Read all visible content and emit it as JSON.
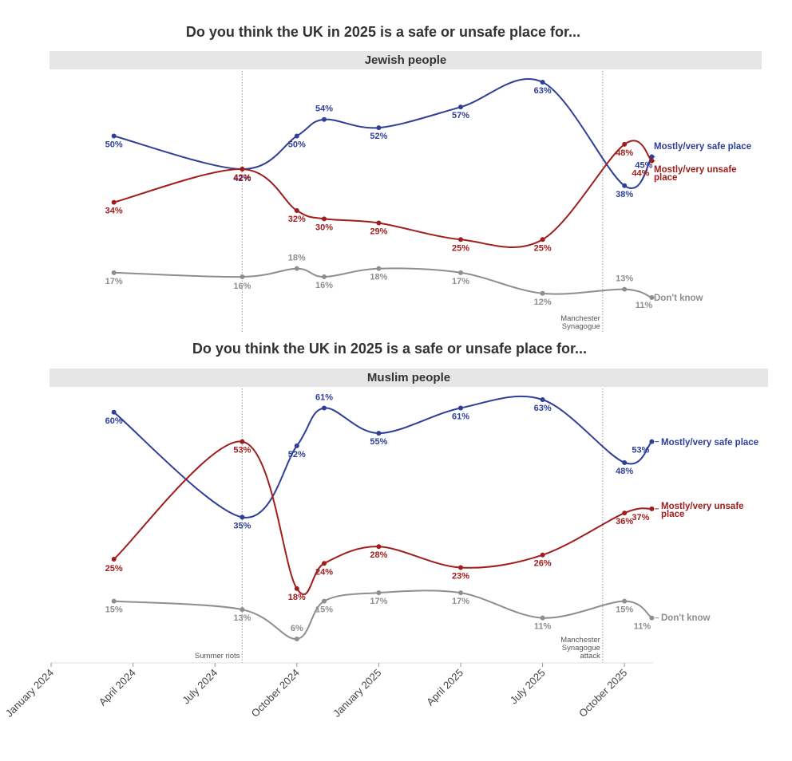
{
  "colors": {
    "safe": "#2e3f97",
    "unsafe": "#a11d1d",
    "dont_know": "#8e8e8e",
    "strip": "#e6e6e6",
    "text": "#333333"
  },
  "chart_data": [
    {
      "type": "line",
      "title": "Do you think the UK in 2025 is a safe or unsafe place for...",
      "panel_label": "Jewish people",
      "x_unit": "months since January 2024",
      "x": [
        2.3,
        7.0,
        9.0,
        10.0,
        12.0,
        15.0,
        18.0,
        21.0,
        22.0
      ],
      "series": [
        {
          "name": "Mostly/very safe place",
          "key": "safe",
          "values": [
            50,
            42,
            50,
            54,
            52,
            57,
            63,
            38,
            45
          ],
          "labels": [
            "50%",
            "42%",
            "50%",
            "54%",
            "52%",
            "57%",
            "63%",
            "38%",
            "45%"
          ]
        },
        {
          "name": "Mostly/very unsafe place",
          "key": "unsafe",
          "values": [
            34,
            42,
            32,
            30,
            29,
            25,
            25,
            48,
            44
          ],
          "labels": [
            "34%",
            "42%",
            "32%",
            "30%",
            "29%",
            "25%",
            "25%",
            "48%",
            "44%"
          ]
        },
        {
          "name": "Don't know",
          "key": "dont_know",
          "values": [
            17,
            16,
            18,
            16,
            18,
            17,
            12,
            13,
            11
          ],
          "labels": [
            "17%",
            "16%",
            "18%",
            "16%",
            "18%",
            "17%",
            "12%",
            "13%",
            "11%"
          ]
        }
      ],
      "end_labels": {
        "safe": "Mostly/very safe place",
        "unsafe_1": "Mostly/very unsafe",
        "unsafe_2": "place",
        "dont_know": "Don't know"
      },
      "annotations": [
        {
          "x": 7.0,
          "lines": []
        },
        {
          "x": 20.2,
          "lines": [
            "Manchester",
            "Synagogue"
          ]
        }
      ]
    },
    {
      "type": "line",
      "title": "Do you think the UK in 2025 is a safe or unsafe place for...",
      "panel_label": "Muslim people",
      "x_unit": "months since January 2024",
      "x": [
        2.3,
        7.0,
        9.0,
        10.0,
        12.0,
        15.0,
        18.0,
        21.0,
        22.0
      ],
      "series": [
        {
          "name": "Mostly/very safe place",
          "key": "safe",
          "values": [
            60,
            35,
            52,
            61,
            55,
            61,
            63,
            48,
            53
          ],
          "labels": [
            "60%",
            "35%",
            "52%",
            "61%",
            "55%",
            "61%",
            "63%",
            "48%",
            "53%"
          ]
        },
        {
          "name": "Mostly/very unsafe place",
          "key": "unsafe",
          "values": [
            25,
            53,
            18,
            24,
            28,
            23,
            26,
            36,
            37
          ],
          "labels": [
            "25%",
            "53%",
            "18%",
            "24%",
            "28%",
            "23%",
            "26%",
            "36%",
            "37%"
          ]
        },
        {
          "name": "Don't know",
          "key": "dont_know",
          "values": [
            15,
            13,
            6,
            15,
            17,
            17,
            11,
            15,
            11
          ],
          "labels": [
            "15%",
            "13%",
            "6%",
            "15%",
            "17%",
            "17%",
            "11%",
            "15%",
            "11%"
          ]
        }
      ],
      "end_labels": {
        "safe": "Mostly/very safe place",
        "unsafe_1": "Mostly/very unsafe",
        "unsafe_2": "place",
        "dont_know": "Don't know"
      },
      "annotations": [
        {
          "x": 7.0,
          "lines": [
            "Summer riots"
          ]
        },
        {
          "x": 20.2,
          "lines": [
            "Manchester",
            "Synagogue",
            "attack"
          ]
        }
      ]
    }
  ],
  "x_axis": {
    "ticks": [
      {
        "x": 0,
        "label": "January 2024"
      },
      {
        "x": 3,
        "label": "April 2024"
      },
      {
        "x": 6,
        "label": "July 2024"
      },
      {
        "x": 9,
        "label": "October 2024"
      },
      {
        "x": 12,
        "label": "January 2025"
      },
      {
        "x": 15,
        "label": "April 2025"
      },
      {
        "x": 18,
        "label": "July 2025"
      },
      {
        "x": 21,
        "label": "October 2025"
      }
    ]
  }
}
